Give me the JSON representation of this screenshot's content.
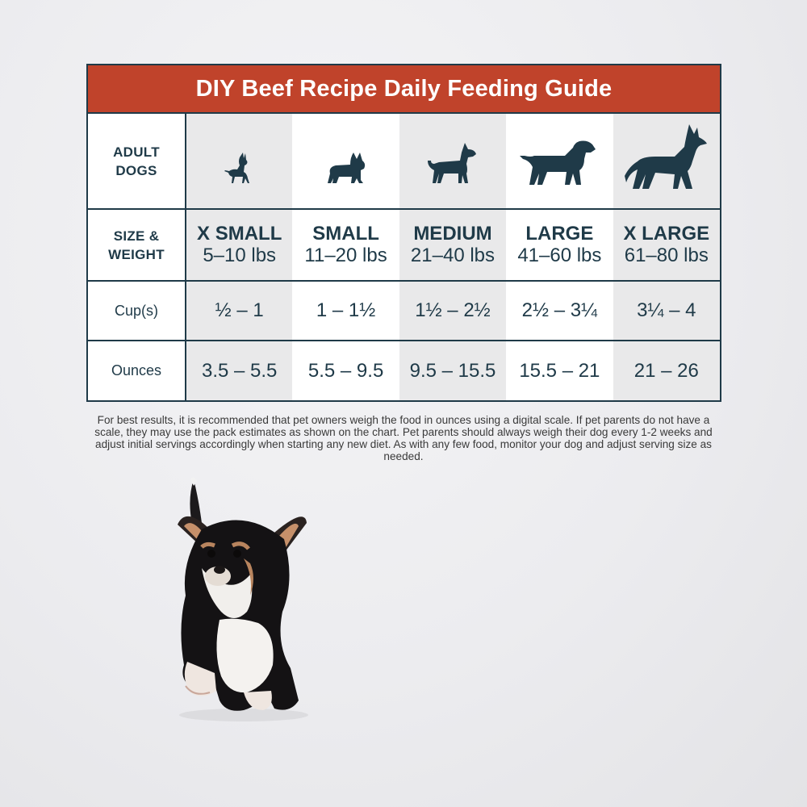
{
  "guide": {
    "title": "DIY  Beef Recipe Daily Feeding Guide",
    "row_labels": {
      "dogs_line1": "ADULT",
      "dogs_line2": "DOGS",
      "size_line1": "SIZE &",
      "size_line2": "WEIGHT",
      "cups": "Cup(s)",
      "ounces": "Ounces"
    },
    "columns": [
      {
        "size": "X SMALL",
        "weight": "5–10 lbs",
        "cups": "½ – 1",
        "ounces": "3.5 – 5.5",
        "icon": "chihuahua-icon"
      },
      {
        "size": "SMALL",
        "weight": "11–20 lbs",
        "cups": "1 – 1½",
        "ounces": "5.5 – 9.5",
        "icon": "french-bulldog-icon"
      },
      {
        "size": "MEDIUM",
        "weight": "21–40 lbs",
        "cups": "1½ – 2½",
        "ounces": "9.5 – 15.5",
        "icon": "terrier-icon"
      },
      {
        "size": "LARGE",
        "weight": "41–60 lbs",
        "cups": "2½ – 3¼",
        "ounces": "15.5 – 21",
        "icon": "retriever-icon"
      },
      {
        "size": "X LARGE",
        "weight": "61–80 lbs",
        "cups": "3¼ – 4",
        "ounces": "21 – 26",
        "icon": "shepherd-icon"
      }
    ]
  },
  "note": "For best results, it is recommended that pet owners weigh the food in ounces using a digital scale. If pet parents do not have a scale, they may use the pack estimates as shown on the chart. Pet parents should always weigh their dog every 1-2 weeks and adjust initial servings accordingly when starting any new diet. As with any few food, monitor your dog and adjust serving size as needed.",
  "colors": {
    "header_red": "#c0432b",
    "navy": "#1f3a48",
    "shaded_column": "#e9e9ea"
  }
}
